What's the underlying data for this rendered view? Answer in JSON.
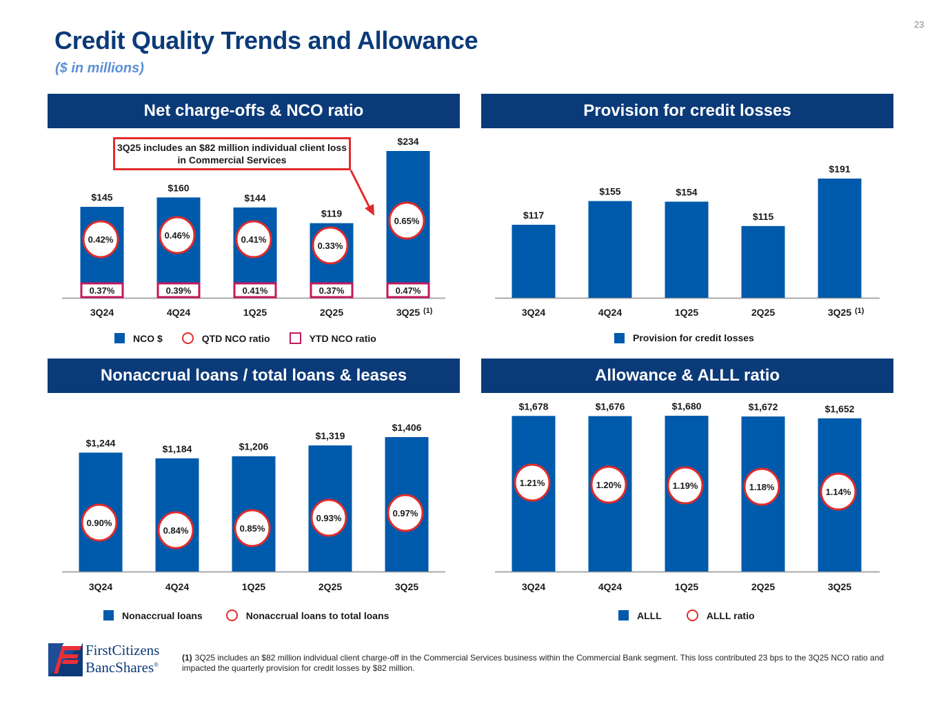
{
  "page_number": "23",
  "title": "Credit Quality Trends and Allowance",
  "subtitle": "($ in millions)",
  "colors": {
    "navy": "#0b3a78",
    "bar_blue": "#005aab",
    "ratio_red": "#e02b2b",
    "ytd_crimson": "#c2185b",
    "subtitle_blue": "#5b8fd6"
  },
  "panels": {
    "nco": {
      "header": "Net charge-offs & NCO ratio",
      "callout": "3Q25 includes an $82 million individual client loss in Commercial Services",
      "footnote_marker": "(1)",
      "legend": {
        "bars": "NCO $",
        "circle": "QTD NCO ratio",
        "box": "YTD NCO ratio"
      }
    },
    "provision": {
      "header": "Provision for credit losses",
      "footnote_marker": "(1)",
      "legend": {
        "bars": "Provision for credit losses"
      }
    },
    "nonaccrual": {
      "header": "Nonaccrual loans / total loans & leases",
      "legend": {
        "bars": "Nonaccrual loans",
        "circle": "Nonaccrual loans to total loans"
      }
    },
    "allowance": {
      "header": "Allowance & ALLL ratio",
      "legend": {
        "bars": "ALLL",
        "circle": "ALLL ratio"
      }
    }
  },
  "chart_data": [
    {
      "id": "nco",
      "type": "bar",
      "title": "Net charge-offs & NCO ratio",
      "categories": [
        "3Q24",
        "4Q24",
        "1Q25",
        "2Q25",
        "3Q25"
      ],
      "series": [
        {
          "name": "NCO $",
          "values": [
            145,
            160,
            144,
            119,
            234
          ],
          "labels": [
            "$145",
            "$160",
            "$144",
            "$119",
            "$234"
          ]
        },
        {
          "name": "QTD NCO ratio",
          "values": [
            0.42,
            0.46,
            0.41,
            0.33,
            0.65
          ],
          "labels": [
            "0.42%",
            "0.46%",
            "0.41%",
            "0.33%",
            "0.65%"
          ]
        },
        {
          "name": "YTD NCO ratio",
          "values": [
            0.37,
            0.39,
            0.41,
            0.37,
            0.47
          ],
          "labels": [
            "0.37%",
            "0.39%",
            "0.41%",
            "0.37%",
            "0.47%"
          ]
        }
      ],
      "annotations": [
        "3Q25 includes an $82 million individual client loss in Commercial Services"
      ],
      "ylim": [
        0,
        234
      ],
      "legend": "bottom"
    },
    {
      "id": "provision",
      "type": "bar",
      "title": "Provision for credit losses",
      "categories": [
        "3Q24",
        "4Q24",
        "1Q25",
        "2Q25",
        "3Q25"
      ],
      "series": [
        {
          "name": "Provision for credit losses",
          "values": [
            117,
            155,
            154,
            115,
            191
          ],
          "labels": [
            "$117",
            "$155",
            "$154",
            "$115",
            "$191"
          ]
        }
      ],
      "ylim": [
        0,
        191
      ],
      "legend": "bottom"
    },
    {
      "id": "nonaccrual",
      "type": "bar",
      "title": "Nonaccrual loans / total loans & leases",
      "categories": [
        "3Q24",
        "4Q24",
        "1Q25",
        "2Q25",
        "3Q25"
      ],
      "series": [
        {
          "name": "Nonaccrual loans",
          "values": [
            1244,
            1184,
            1206,
            1319,
            1406
          ],
          "labels": [
            "$1,244",
            "$1,184",
            "$1,206",
            "$1,319",
            "$1,406"
          ]
        },
        {
          "name": "Nonaccrual loans to total loans",
          "values": [
            0.9,
            0.84,
            0.85,
            0.93,
            0.97
          ],
          "labels": [
            "0.90%",
            "0.84%",
            "0.85%",
            "0.93%",
            "0.97%"
          ]
        }
      ],
      "ylim": [
        0,
        1406
      ],
      "legend": "bottom"
    },
    {
      "id": "allowance",
      "type": "bar",
      "title": "Allowance & ALLL ratio",
      "categories": [
        "3Q24",
        "4Q24",
        "1Q25",
        "2Q25",
        "3Q25"
      ],
      "series": [
        {
          "name": "ALLL",
          "values": [
            1678,
            1676,
            1680,
            1672,
            1652
          ],
          "labels": [
            "$1,678",
            "$1,676",
            "$1,680",
            "$1,672",
            "$1,652"
          ]
        },
        {
          "name": "ALLL ratio",
          "values": [
            1.21,
            1.2,
            1.19,
            1.18,
            1.14
          ],
          "labels": [
            "1.21%",
            "1.20%",
            "1.19%",
            "1.18%",
            "1.14%"
          ]
        }
      ],
      "ylim": [
        0,
        1680
      ],
      "legend": "bottom"
    }
  ],
  "footnote": {
    "marker": "(1)",
    "text": "3Q25 includes an $82 million individual client charge-off in the Commercial Services business within the Commercial Bank segment. This loss contributed 23 bps to the 3Q25 NCO ratio and impacted the quarterly provision for credit losses by $82 million."
  },
  "logo": {
    "line1": "FirstCitizens",
    "line2": "BancShares",
    "mark": "®"
  }
}
